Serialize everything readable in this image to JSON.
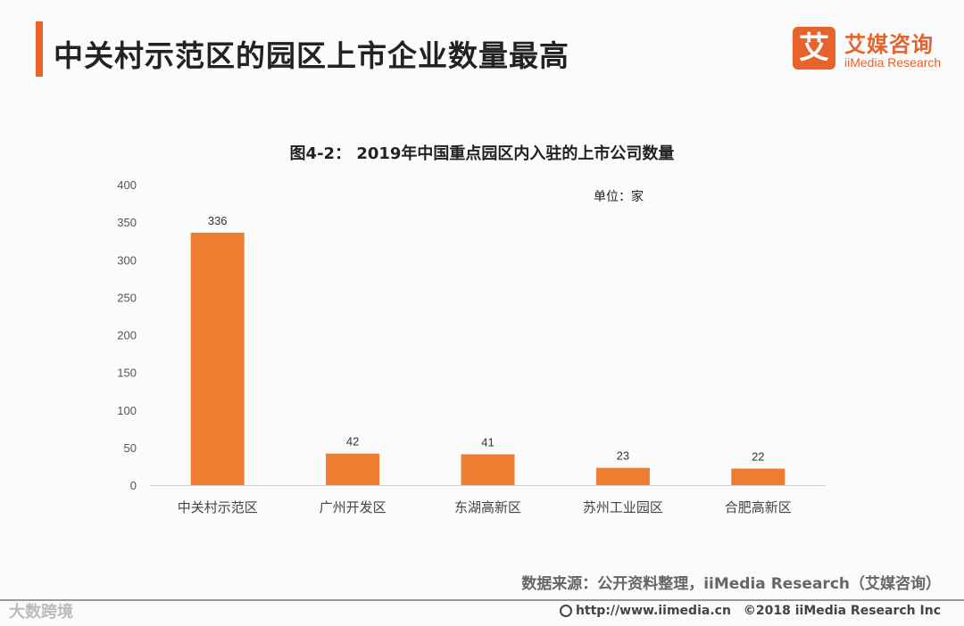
{
  "page": {
    "title": "中关村示范区的园区上市企业数量最高",
    "accent_color": "#e8622c"
  },
  "logo": {
    "mark": "艾",
    "cn": "艾媒咨询",
    "en": "iiMedia Research"
  },
  "chart_data": {
    "type": "bar",
    "title": "图4-2： 2019年中国重点园区内入驻的上市公司数量",
    "unit": "单位：家",
    "categories": [
      "中关村示范区",
      "广州开发区",
      "东湖高新区",
      "苏州工业园区",
      "合肥高新区"
    ],
    "values": [
      336,
      42,
      41,
      23,
      22
    ],
    "ylim": [
      0,
      400
    ],
    "yticks": [
      0,
      50,
      100,
      150,
      200,
      250,
      300,
      350,
      400
    ],
    "bar_color": "#ed7d31",
    "grid": false
  },
  "source": "数据来源：公开资料整理，iiMedia Research（艾媒咨询）",
  "watermark": "大数跨境",
  "footer": {
    "url": "http://www.iimedia.cn",
    "copyright": "©2018  iiMedia Research  Inc"
  }
}
